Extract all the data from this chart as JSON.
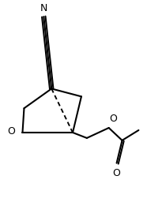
{
  "background_color": "#ffffff",
  "line_color": "#000000",
  "line_width": 1.5,
  "figsize": [
    1.86,
    2.56
  ],
  "dpi": 100,
  "font_size": 9,
  "N_label": "N",
  "O_ring_label": "O",
  "O_ester_label": "O",
  "O_carbonyl_label": "O"
}
